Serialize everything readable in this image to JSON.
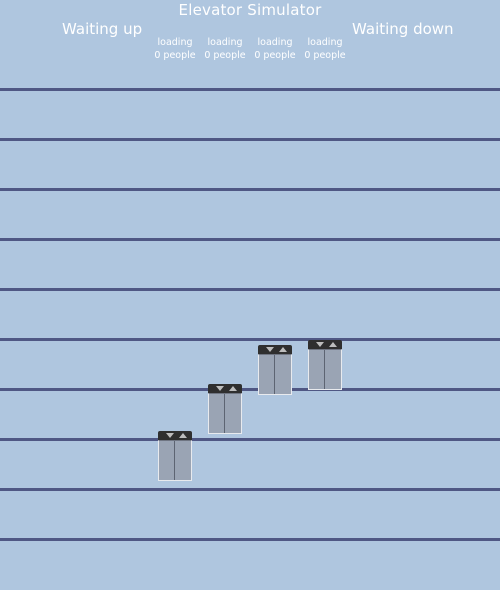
{
  "app": {
    "title": "Elevator Simulator",
    "waiting_up_label": "Waiting up",
    "waiting_down_label": "Waiting down"
  },
  "elevators": [
    {
      "state": "loading",
      "people": "0 people"
    },
    {
      "state": "loading",
      "people": "0 people"
    },
    {
      "state": "loading",
      "people": "0 people"
    },
    {
      "state": "loading",
      "people": "0 people"
    }
  ],
  "colors": {
    "background": "#afc6df",
    "floor_line": "#4f5784",
    "elevator_cabin": "#9aa4b4",
    "indicator": "#2f2f2f"
  },
  "icons": {
    "down_arrow": "triangle-down",
    "up_arrow": "triangle-up"
  }
}
